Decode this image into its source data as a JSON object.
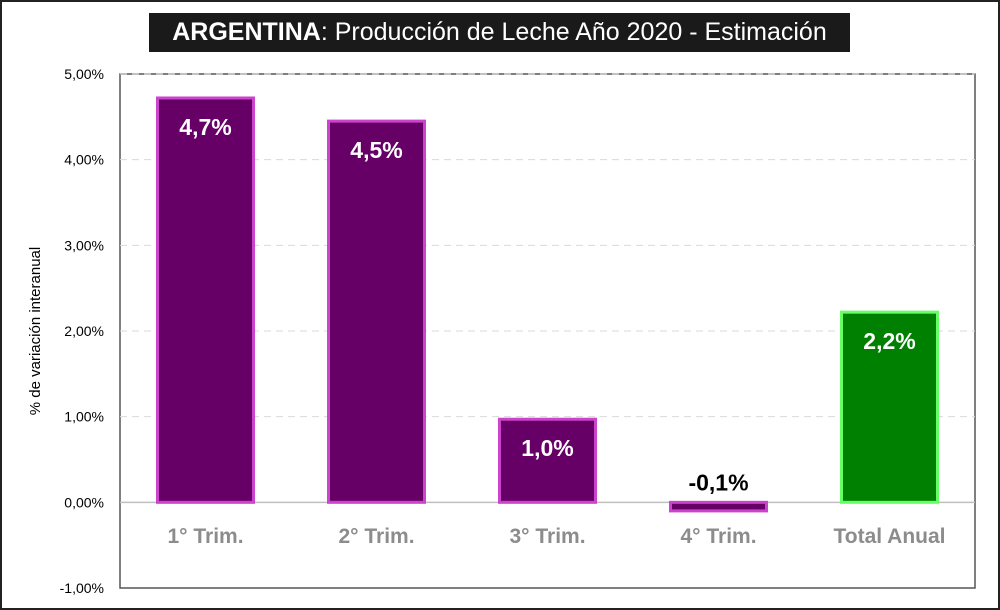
{
  "chart_data": {
    "type": "bar",
    "title_bold": "ARGENTINA",
    "title_rest": ": Producción de Leche Año 2020 - Estimación",
    "ylabel": "% de variación interanual",
    "xlabel": "",
    "categories": [
      "1° Trim.",
      "2° Trim.",
      "3° Trim.",
      "4° Trim.",
      "Total Anual"
    ],
    "values": [
      4.72,
      4.45,
      0.97,
      -0.1,
      2.22
    ],
    "data_labels": [
      "4,7%",
      "4,5%",
      "1,0%",
      "-0,1%",
      "2,2%"
    ],
    "ylim": [
      -1.0,
      5.0
    ],
    "yticks": [
      5.0,
      4.0,
      3.0,
      2.0,
      1.0,
      0.0,
      -1.0
    ],
    "ytick_labels": [
      "5,00%",
      "4,00%",
      "3,00%",
      "2,00%",
      "1,00%",
      "0,00%",
      "-1,00%"
    ],
    "grid": true,
    "colors": {
      "quarter_fill": "#660066",
      "quarter_border": "#cc44cc",
      "total_fill": "#008000",
      "total_border": "#66ff66",
      "label_on_bar": "#ffffff",
      "label_outside": "#000000",
      "category_text": "#8c8c8c"
    }
  }
}
